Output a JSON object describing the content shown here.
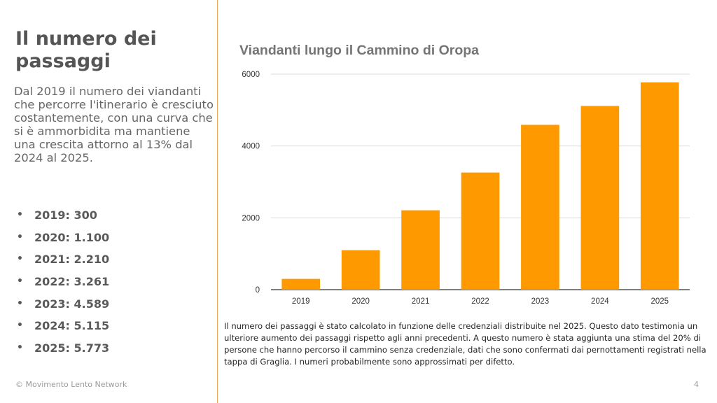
{
  "slide": {
    "title": "Il numero dei passaggi",
    "intro": "Dal 2019 il numero dei viandanti che percorre l'itinerario è cresciuto costantemente, con una curva che si è ammorbidita ma mantiene una crescita attorno al 13% dal 2024 al 2025.",
    "bullet_marker": "•",
    "bullets": [
      "2019: 300",
      "2020: 1.100",
      "2021: 2.210",
      "2022: 3.261",
      "2023: 4.589",
      "2024: 5.115",
      "2025: 5.773"
    ],
    "note": "Il numero dei passaggi è stato calcolato in funzione delle credenziali distribuite nel 2025. Questo dato testimonia un ulteriore aumento dei passaggi rispetto agli anni precedenti. A questo numero è stata aggiunta una stima del 20% di persone che hanno percorso il cammino senza credenziale, dati che sono confermati dai pernottamenti registrati nella tappa di Graglia. I numeri probabilmente sono approssimati per difetto.",
    "footer": "© Movimento Lento Network",
    "page_number": "4"
  },
  "colors": {
    "bar": "#ff9900",
    "divider": "#f0a458",
    "grid": "#d9d9d9",
    "title": "#555555"
  },
  "chart_data": {
    "type": "bar",
    "title": "Viandanti lungo il Cammino di Oropa",
    "xlabel": "",
    "ylabel": "",
    "categories": [
      "2019",
      "2020",
      "2021",
      "2022",
      "2023",
      "2024",
      "2025"
    ],
    "values": [
      300,
      1100,
      2210,
      3261,
      4589,
      5115,
      5773
    ],
    "ylim": [
      0,
      6000
    ],
    "yticks": [
      0,
      2000,
      4000,
      6000
    ],
    "grid": true,
    "legend": "none"
  }
}
